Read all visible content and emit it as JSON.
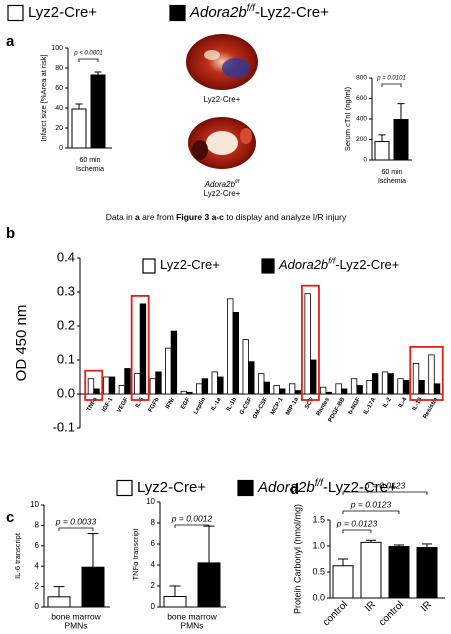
{
  "legend_top": {
    "items": [
      {
        "label": [
          "Lyz2-Cre+"
        ],
        "color": "#ffffff"
      },
      {
        "label": [
          "Adora2b",
          "f/f",
          "-Lyz2-Cre+"
        ],
        "color": "#000000"
      }
    ]
  },
  "panel_labels": [
    "a",
    "b",
    "c",
    "d"
  ],
  "images": [
    {
      "label": [
        "Lyz2-Cre+"
      ]
    },
    {
      "label": [
        "Adora2b",
        "f/f",
        "Lyz2-Cre+"
      ]
    }
  ],
  "caption": [
    "Data in ",
    "a",
    " are from ",
    "Figure 3 a-c",
    " to display and analyze I/R injury"
  ],
  "legend_c": {
    "items": [
      {
        "label": [
          "Lyz2-Cre+"
        ],
        "color": "#ffffff"
      },
      {
        "label": [
          "Adora2b",
          "f/f",
          "-Lyz2-Cre+"
        ],
        "color": "#000000"
      }
    ]
  },
  "chart_data": [
    {
      "type": "bar",
      "y_label": "Infarct size [%Area at risk]",
      "x_label": [
        "60 min",
        "Ischemia"
      ],
      "values": [
        39,
        73
      ],
      "errors": [
        5,
        3
      ],
      "colors": [
        "#ffffff",
        "#000000"
      ],
      "ylim": [
        0,
        100
      ],
      "yticks": [
        0,
        20,
        40,
        60,
        80,
        100
      ],
      "annotations": [
        "p < 0.0001"
      ]
    },
    {
      "type": "bar",
      "y_label": "Serum cTnI (ng/ml)",
      "x_label": [
        "60 min",
        "Ischemia"
      ],
      "values": [
        180,
        395
      ],
      "errors": [
        65,
        155
      ],
      "colors": [
        "#ffffff",
        "#000000"
      ],
      "ylim": [
        0,
        800
      ],
      "yticks": [
        0,
        200,
        400,
        600,
        800
      ],
      "annotations": [
        "p = 0.0101"
      ]
    },
    {
      "type": "bar",
      "y_label": "OD 450 nm",
      "categories": [
        "TNFa",
        "IGF-1",
        "VEGF",
        "IL-6",
        "FGFb",
        "IFNr",
        "EGF",
        "Leptin",
        "IL-1a",
        "IL-1b",
        "G-CSF",
        "GM-CSF",
        "MCP-1",
        "MIP-1a",
        "SCF",
        "Rantes",
        "PDGF-BB",
        "b-NGF",
        "IL-17A",
        "IL-2",
        "IL-4",
        "IL-10",
        "Resistin"
      ],
      "series": [
        {
          "name": [
            "Lyz2-Cre+"
          ],
          "color": "#ffffff",
          "values": [
            0.045,
            0.05,
            0.025,
            0.06,
            0.045,
            0.135,
            0.008,
            0.03,
            0.065,
            0.28,
            0.16,
            0.06,
            0.025,
            0.03,
            0.295,
            0.02,
            0.03,
            0.045,
            0.04,
            0.065,
            0.045,
            0.09,
            0.115
          ]
        },
        {
          "name": [
            "Adora2b",
            "f/f",
            "-Lyz2-Cre+"
          ],
          "color": "#000000",
          "values": [
            0.015,
            0.05,
            0.075,
            0.265,
            0.065,
            0.185,
            0.005,
            0.045,
            0.05,
            0.24,
            0.095,
            0.035,
            0.015,
            0.01,
            0.1,
            0.005,
            0.015,
            0.025,
            0.06,
            0.06,
            0.04,
            0.04,
            0.03
          ]
        }
      ],
      "ylim": [
        -0.1,
        0.4
      ],
      "yticks": [
        -0.1,
        {
          "value": 0,
          "label": "0.0"
        },
        0.1,
        0.2,
        0.3,
        0.4
      ]
    },
    {
      "type": "bar",
      "y_label": "IL-6 transcript",
      "x_label": [
        "bone marrow",
        "PMNs"
      ],
      "values": [
        1,
        3.9
      ],
      "errors": [
        1,
        3.3
      ],
      "colors": [
        "#ffffff",
        "#000000"
      ],
      "ylim": [
        0,
        10
      ],
      "yticks": [
        0,
        2,
        4,
        6,
        8,
        10
      ],
      "annotations": [
        "p = 0.0033"
      ]
    },
    {
      "type": "bar",
      "y_label": "TNFα transcript",
      "x_label": [
        "bone marrow",
        "PMNs"
      ],
      "values": [
        1,
        4.2
      ],
      "errors": [
        1,
        3.5
      ],
      "colors": [
        "#ffffff",
        "#000000"
      ],
      "ylim": [
        0,
        10
      ],
      "yticks": [
        0,
        2,
        4,
        6,
        8,
        10
      ],
      "annotations": [
        "p = 0.0012"
      ]
    },
    {
      "type": "bar",
      "y_label": "Protein Carbonyl (nmol/mg)",
      "categories": [
        "control",
        "IR",
        "control",
        "IR"
      ],
      "values": [
        0.62,
        1.07,
        0.99,
        0.97
      ],
      "errors": [
        0.13,
        0.04,
        0.03,
        0.07
      ],
      "colors": [
        "#ffffff",
        "#ffffff",
        "#000000",
        "#000000"
      ],
      "ylim": [
        0,
        1.5
      ],
      "yticks": [
        {
          "value": 0,
          "label": "0.0"
        },
        0.5,
        {
          "value": 1,
          "label": "1.0"
        },
        1.5
      ],
      "annotations": [
        "p = 0.0123",
        "p = 0.0123",
        "p = 0.0123"
      ]
    }
  ]
}
